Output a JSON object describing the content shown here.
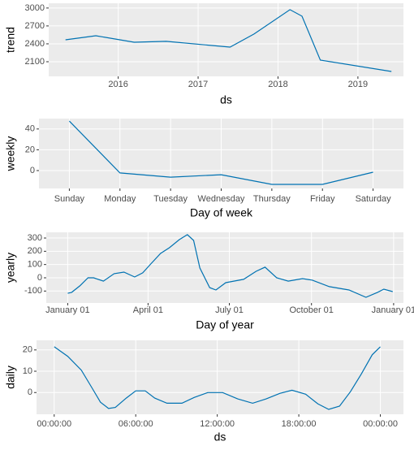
{
  "chart_data": [
    {
      "type": "line",
      "xlabel": "ds",
      "ylabel": "trend",
      "color": "#0072B2",
      "grid": true,
      "x": [
        2015.34,
        2015.72,
        2016.2,
        2016.6,
        2017.4,
        2017.7,
        2018.15,
        2018.3,
        2018.53,
        2019.42
      ],
      "values": [
        2468,
        2536,
        2427,
        2441,
        2345,
        2564,
        2973,
        2864,
        2127,
        1936
      ],
      "xlim": [
        2015.13,
        2019.57
      ],
      "xticks": [
        2016,
        2017,
        2018,
        2019
      ],
      "ylim": [
        1855,
        3080
      ],
      "yticks": [
        2100,
        2400,
        2700,
        3000
      ]
    },
    {
      "type": "line",
      "xlabel": "Day of week",
      "ylabel": "weekly",
      "color": "#0072B2",
      "grid": true,
      "categories": [
        "Sunday",
        "Monday",
        "Tuesday",
        "Wednesday",
        "Thursday",
        "Friday",
        "Saturday"
      ],
      "values": [
        47.6,
        -2.3,
        -6.3,
        -4,
        -13.3,
        -13.3,
        -1.6
      ],
      "ylim": [
        -17.2,
        50
      ],
      "yticks": [
        0,
        20,
        40
      ]
    },
    {
      "type": "line",
      "xlabel": "Day of year",
      "ylabel": "yearly",
      "color": "#0072B2",
      "grid": true,
      "x": [
        0,
        4.5,
        13.6,
        22.7,
        29,
        40,
        52,
        63,
        75,
        84,
        93,
        104,
        114,
        125,
        134,
        141,
        148,
        159,
        166,
        177,
        186,
        197,
        211,
        221,
        234,
        247,
        263,
        274,
        293,
        315,
        334,
        347,
        354,
        364
      ],
      "values": [
        -117,
        -110,
        -61,
        0,
        0,
        -25,
        31,
        43,
        6,
        37,
        104,
        184,
        227,
        288,
        325,
        282,
        74,
        -74,
        -92,
        -37,
        -25,
        -12,
        49,
        80,
        0,
        -25,
        -6,
        -18,
        -67,
        -92,
        -147,
        -110,
        -86,
        -104
      ],
      "xlim": [
        -24,
        376
      ],
      "xticks": [
        {
          "value": 0,
          "label": "January 01"
        },
        {
          "value": 90,
          "label": "April 01"
        },
        {
          "value": 181,
          "label": "July 01"
        },
        {
          "value": 273,
          "label": "October 01"
        },
        {
          "value": 365,
          "label": "January 01"
        }
      ],
      "ylim": [
        -190,
        343
      ],
      "yticks": [
        -100,
        0,
        100,
        200,
        300
      ]
    },
    {
      "type": "line",
      "xlabel": "ds",
      "ylabel": "daily",
      "color": "#0072B2",
      "grid": true,
      "x": [
        0,
        1,
        2,
        2.8,
        3.4,
        4,
        4.5,
        5.3,
        6,
        6.7,
        7.4,
        8.3,
        9.4,
        10.3,
        11.3,
        12.4,
        13.5,
        14.6,
        15.6,
        16.6,
        17.5,
        18.5,
        19.4,
        20.2,
        21,
        21.8,
        22.6,
        23.4,
        24
      ],
      "values": [
        21.5,
        17,
        10.5,
        2,
        -4.5,
        -7.5,
        -7,
        -2.6,
        0.8,
        0.8,
        -2.6,
        -5,
        -5,
        -2.3,
        0,
        0,
        -3,
        -5,
        -3,
        -0.4,
        1.1,
        -0.8,
        -5.3,
        -7.9,
        -6.4,
        0.4,
        8.7,
        17.7,
        21.5
      ],
      "xlim": [
        -1.3,
        25.7
      ],
      "xticks": [
        {
          "value": 0,
          "label": "00:00:00"
        },
        {
          "value": 6,
          "label": "06:00:00"
        },
        {
          "value": 12,
          "label": "12:00:00"
        },
        {
          "value": 18,
          "label": "18:00:00"
        },
        {
          "value": 24,
          "label": "00:00:00"
        }
      ],
      "ylim": [
        -10.2,
        24.5
      ],
      "yticks": [
        0,
        10,
        20
      ]
    }
  ]
}
